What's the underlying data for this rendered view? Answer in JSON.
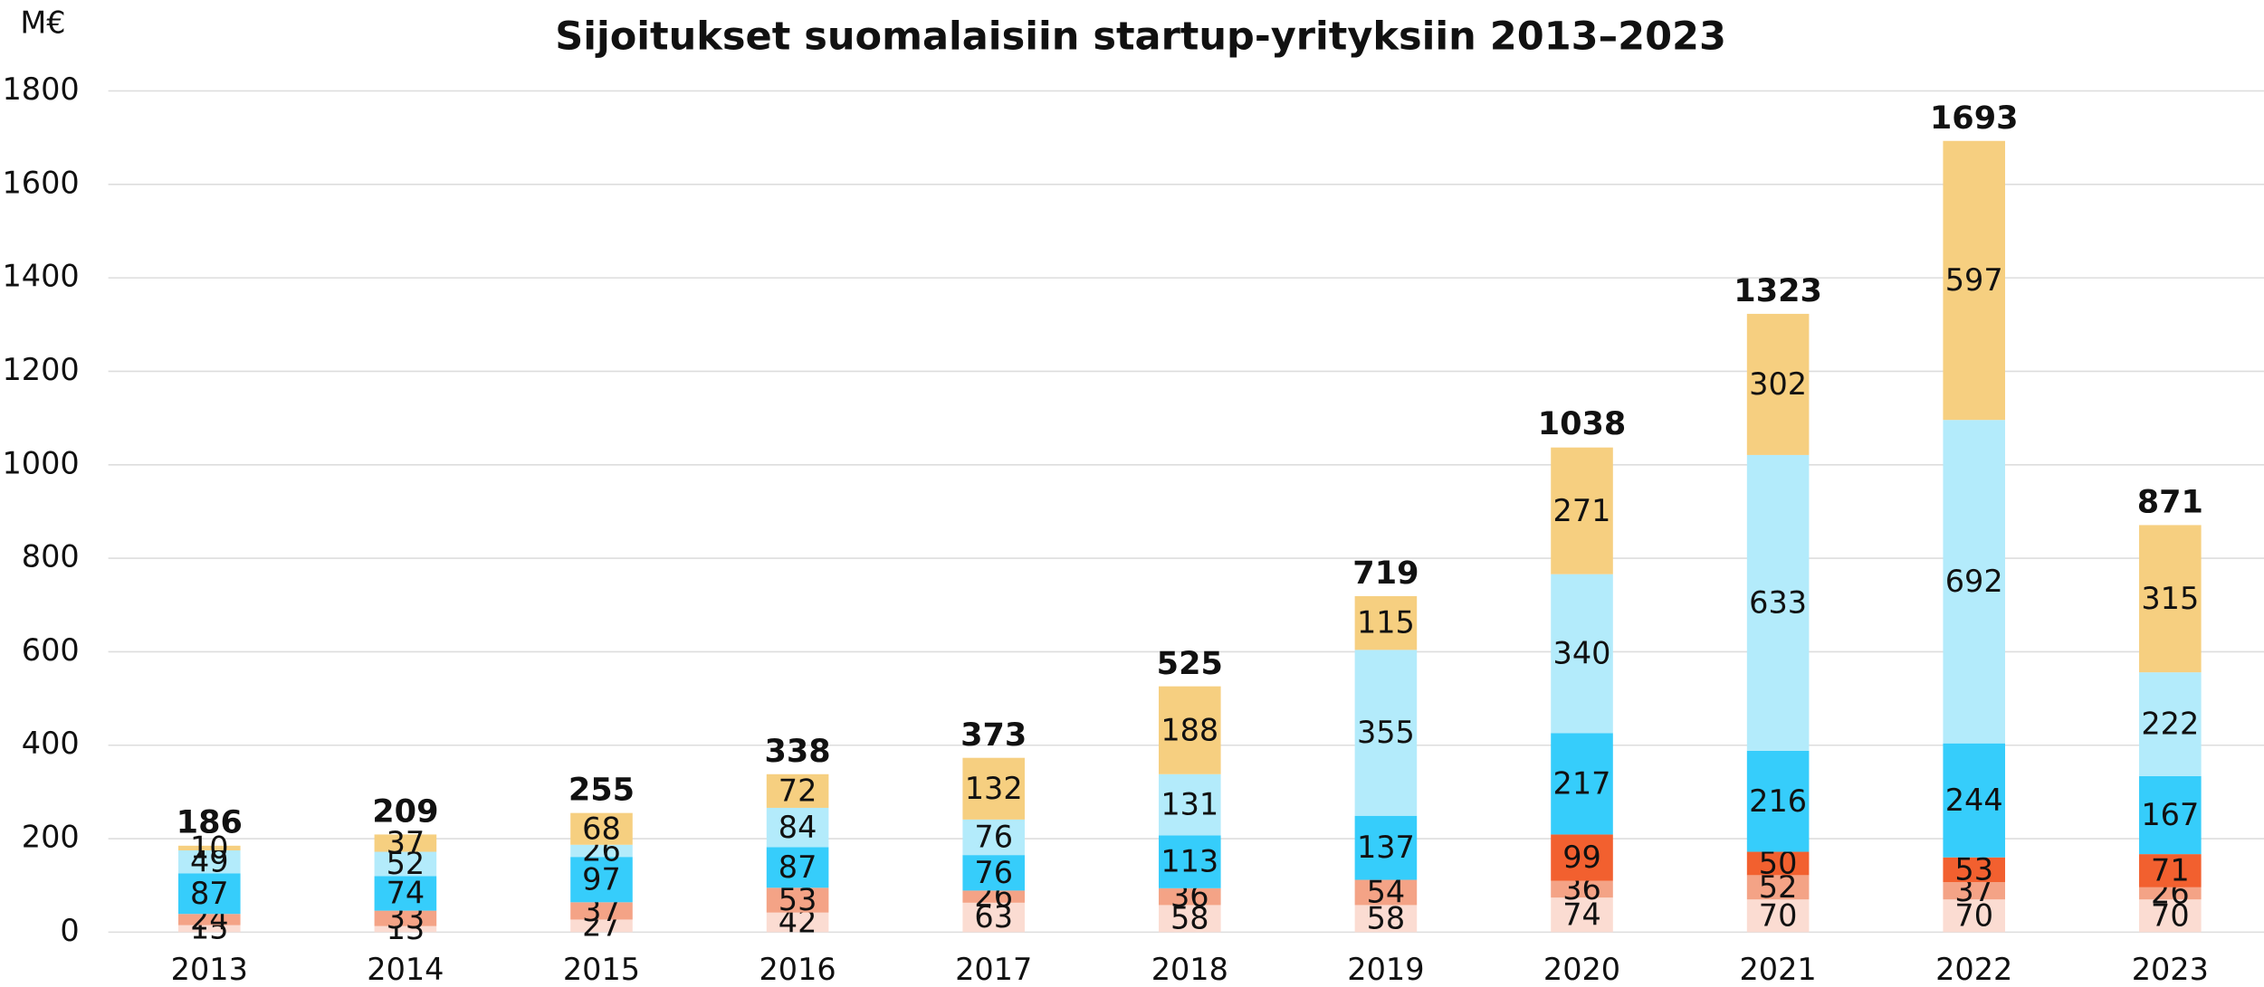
{
  "chart_data": {
    "type": "stacked_bar",
    "title": "Sijoitukset suomalaisiin startup-yrityksiin 2013–2023",
    "y_label": "M€",
    "categories": [
      "2013",
      "2014",
      "2015",
      "2016",
      "2017",
      "2018",
      "2019",
      "2020",
      "2021",
      "2022",
      "2023"
    ],
    "series": [
      {
        "color": "#fbdcd2",
        "values": [
          15,
          13,
          27,
          42,
          63,
          58,
          58,
          74,
          70,
          70,
          70
        ]
      },
      {
        "color": "#f4a386",
        "values": [
          24,
          33,
          37,
          53,
          26,
          36,
          54,
          36,
          52,
          37,
          26
        ]
      },
      {
        "color": "#f2602f",
        "values": [
          null,
          null,
          null,
          null,
          null,
          null,
          null,
          99,
          50,
          53,
          71
        ]
      },
      {
        "color": "#36cdfb",
        "values": [
          87,
          74,
          97,
          87,
          76,
          113,
          137,
          217,
          216,
          244,
          167
        ]
      },
      {
        "color": "#b3ebfb",
        "values": [
          49,
          52,
          26,
          84,
          76,
          131,
          355,
          340,
          633,
          692,
          222
        ]
      },
      {
        "color": "#f6cf80",
        "values": [
          10,
          37,
          68,
          72,
          132,
          188,
          115,
          271,
          302,
          597,
          315
        ]
      }
    ],
    "totals": [
      186,
      209,
      255,
      338,
      373,
      525,
      719,
      1038,
      1323,
      1693,
      871
    ],
    "ylim": [
      0,
      1800
    ],
    "yticks": [
      0,
      200,
      400,
      600,
      800,
      1000,
      1200,
      1400,
      1600,
      1800
    ],
    "grid": true
  }
}
